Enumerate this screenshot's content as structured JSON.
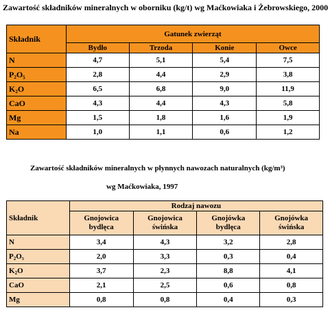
{
  "table1": {
    "title": "Zawartość składników mineralnych w oborniku (kg/t) wg Maćkowiaka i Żebrowskiego, 2000",
    "corner": "Składnik",
    "group_header": "Gatunek zwierząt",
    "columns": [
      "Bydło",
      "Trzoda",
      "Konie",
      "Owce"
    ],
    "rows": [
      {
        "label": "N",
        "label_sub": "",
        "label_end": "",
        "values": [
          "4,7",
          "5,1",
          "5,4",
          "7,5"
        ]
      },
      {
        "label": "P",
        "label_sub": "2",
        "label_end": "O₅",
        "values": [
          "2,8",
          "4,4",
          "2,9",
          "3,8"
        ]
      },
      {
        "label": "K",
        "label_sub": "2",
        "label_end": "O",
        "values": [
          "6,5",
          "6,8",
          "9,0",
          "11,9"
        ]
      },
      {
        "label": "CaO",
        "label_sub": "",
        "label_end": "",
        "values": [
          "4,3",
          "4,4",
          "4,3",
          "5,8"
        ]
      },
      {
        "label": "Mg",
        "label_sub": "",
        "label_end": "",
        "values": [
          "1,5",
          "1,8",
          "1,6",
          "1,9"
        ]
      },
      {
        "label": "Na",
        "label_sub": "",
        "label_end": "",
        "values": [
          "1,0",
          "1,1",
          "0,6",
          "1,2"
        ]
      }
    ],
    "header_color": "#f5921f"
  },
  "table2": {
    "title_line1": "Zawartość składników mineralnych w płynnych nawozach naturalnych (kg/m³)",
    "title_line2": "wg Maćkowiaka, 1997",
    "corner": "Składnik",
    "group_header": "Rodzaj nawozu",
    "columns": [
      {
        "line1": "Gnojowica",
        "line2": "bydlęca"
      },
      {
        "line1": "Gnojowica",
        "line2": "świńska"
      },
      {
        "line1": "Gnojówka",
        "line2": "bydlęca"
      },
      {
        "line1": "Gnojówka",
        "line2": "świńska"
      }
    ],
    "rows": [
      {
        "label": "N",
        "label_sub": "",
        "label_end": "",
        "values": [
          "3,4",
          "4,3",
          "3,2",
          "2,8"
        ]
      },
      {
        "label": "P",
        "label_sub": "2",
        "label_end": "O₅",
        "values": [
          "2,0",
          "3,3",
          "0,3",
          "0,4"
        ]
      },
      {
        "label": "K",
        "label_sub": "2",
        "label_end": "O",
        "values": [
          "3,7",
          "2,3",
          "8,8",
          "4,1"
        ]
      },
      {
        "label": "CaO",
        "label_sub": "",
        "label_end": "",
        "values": [
          "2,1",
          "2,5",
          "0,6",
          "0,8"
        ]
      },
      {
        "label": "Mg",
        "label_sub": "",
        "label_end": "",
        "values": [
          "0,8",
          "0,8",
          "0,4",
          "0,3"
        ]
      }
    ],
    "header_color": "#fad9b5"
  }
}
